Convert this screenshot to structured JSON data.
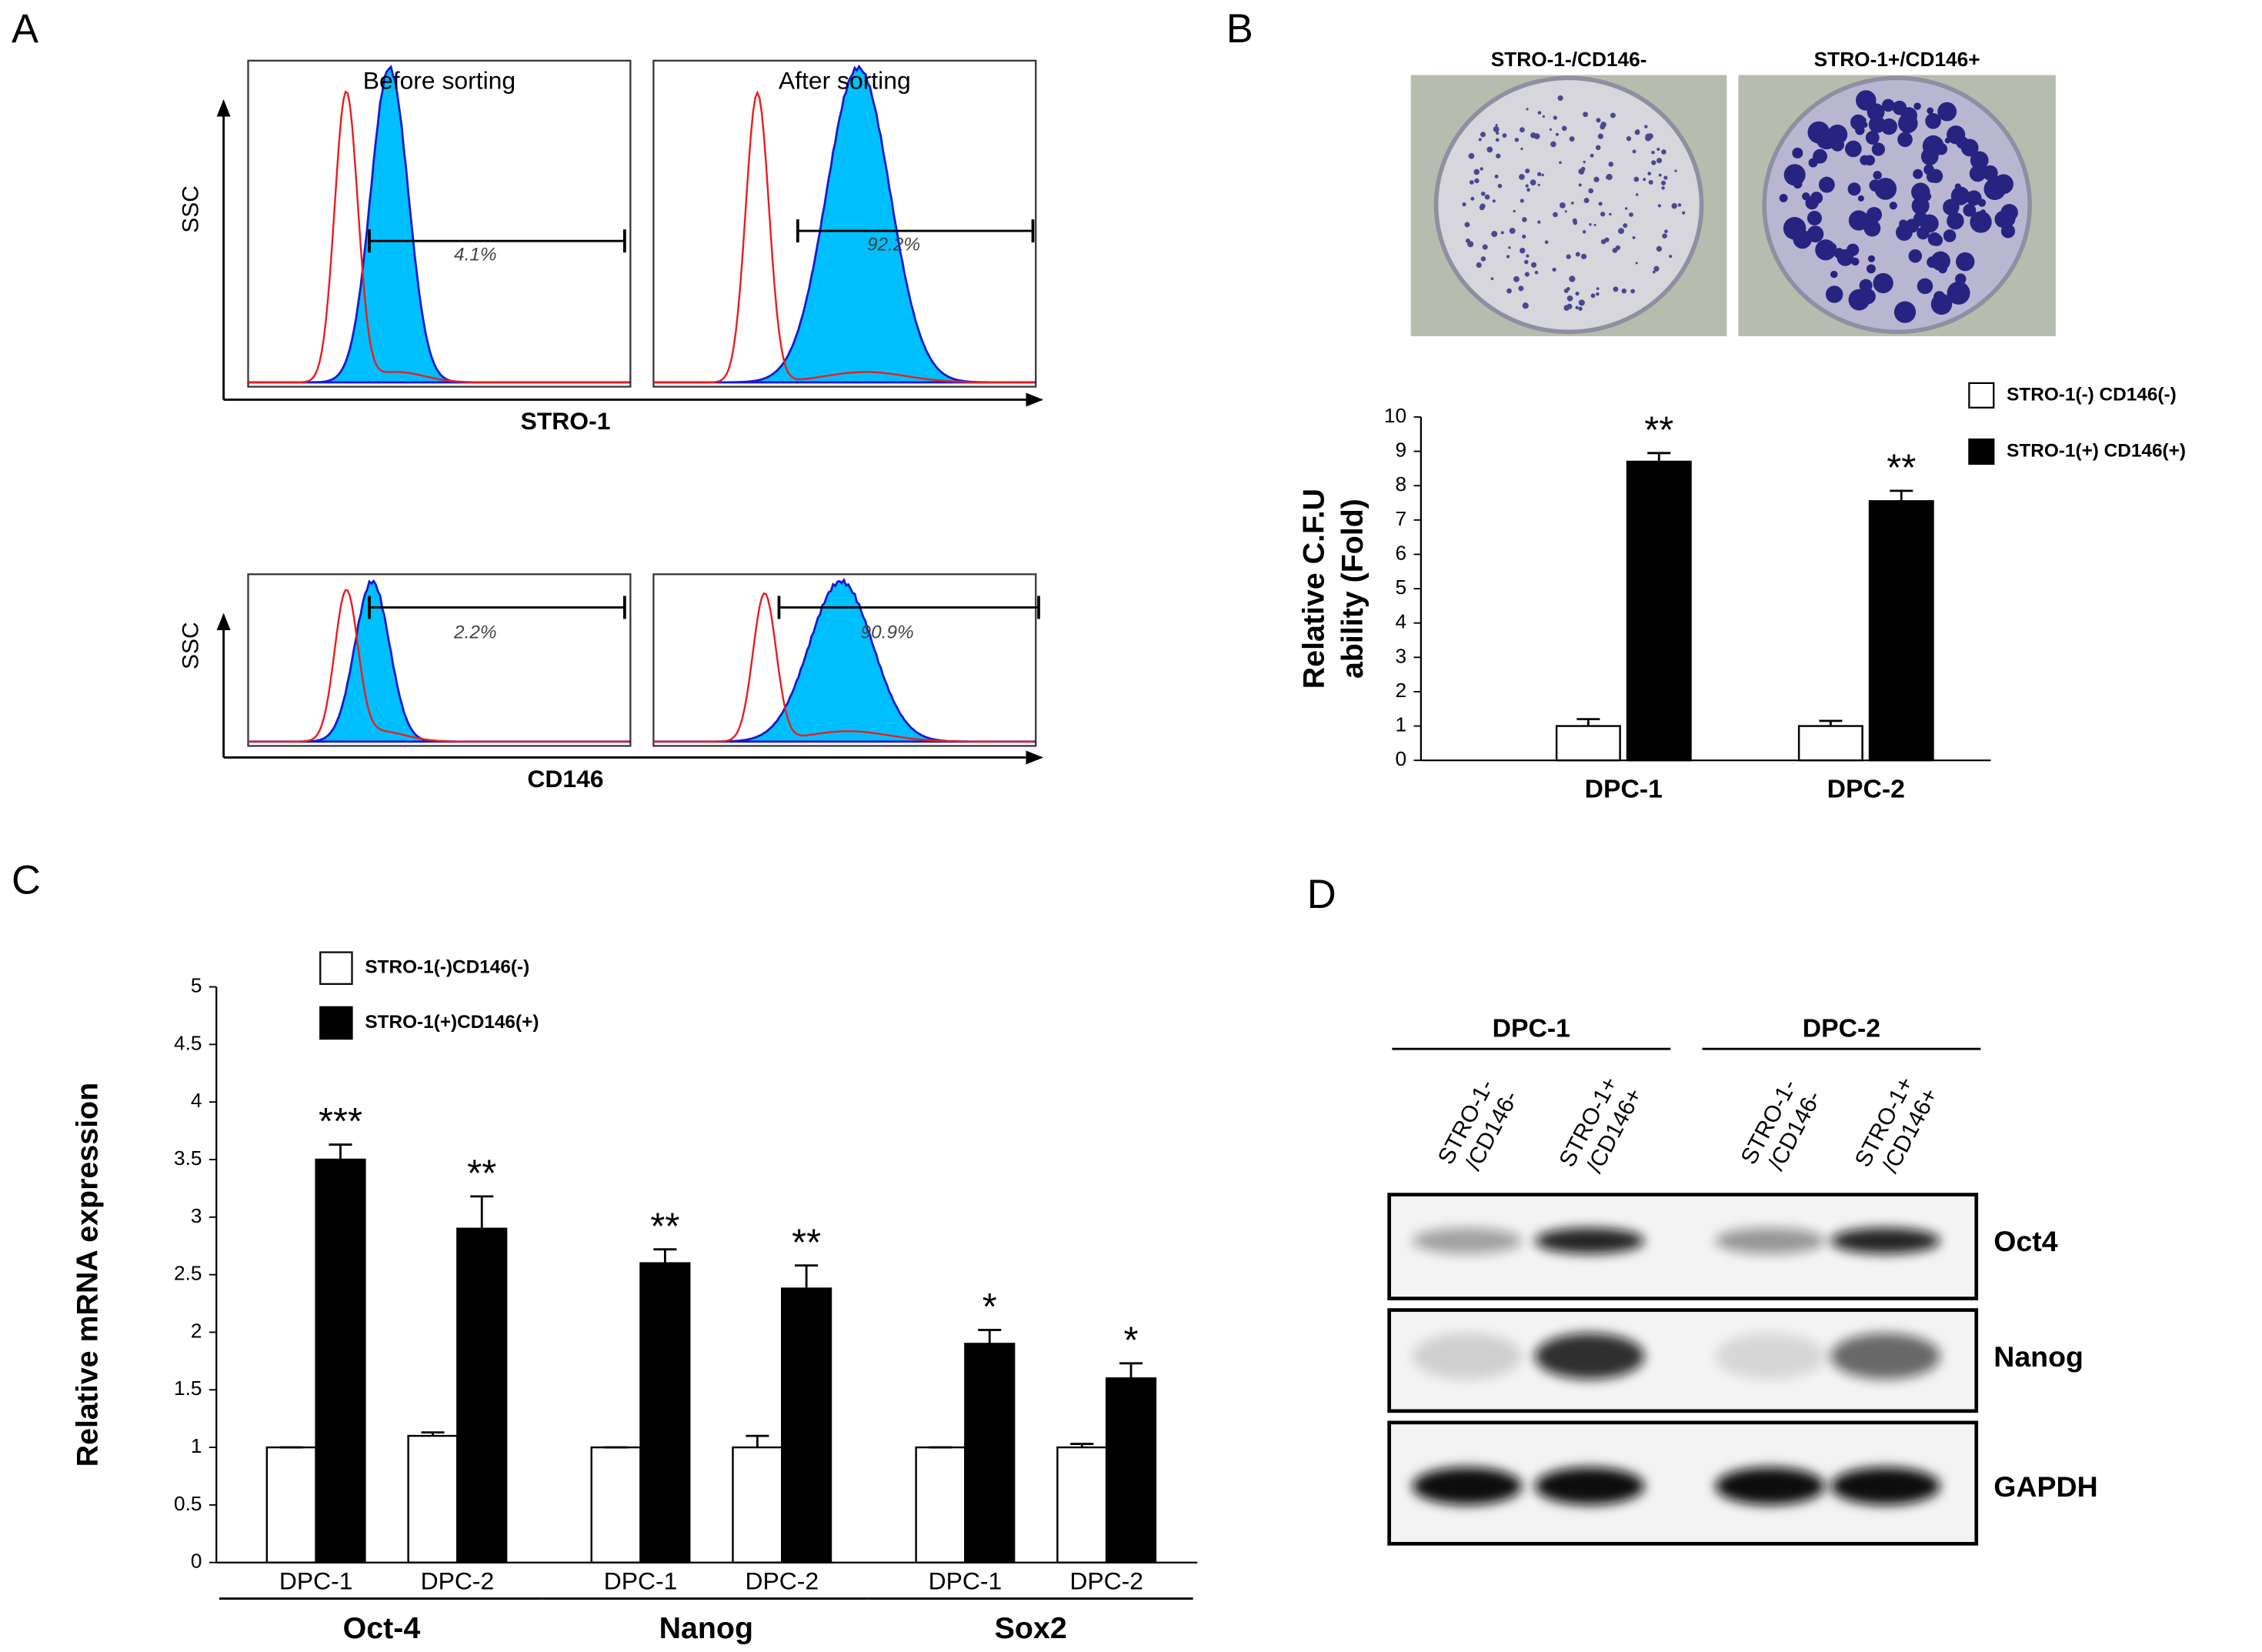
{
  "panel_labels": [
    "A",
    "B",
    "C",
    "D"
  ],
  "flow": {
    "columns": [
      "Before sorting",
      "After sorting"
    ],
    "y_label": "SSC",
    "markers": [
      "STRO-1",
      "CD146"
    ],
    "gates": [
      [
        "4.1%",
        "92.2%"
      ],
      [
        "2.2%",
        "90.9%"
      ]
    ]
  },
  "plates": [
    "STRO-1-/CD146-",
    "STRO-1+/CD146+"
  ],
  "chart_data": [
    {
      "type": "bar",
      "y_label": [
        "Relative C.F.U",
        "ability (Fold)"
      ],
      "categories": [
        "DPC-1",
        "DPC-2"
      ],
      "series": [
        {
          "name": "STRO-1(-) CD146(-)",
          "color": "#ffffff",
          "values": [
            1.0,
            1.0
          ],
          "errors": [
            0.2,
            0.15
          ]
        },
        {
          "name": "STRO-1(+) CD146(+)",
          "color": "#000000",
          "values": [
            8.7,
            7.55
          ],
          "errors": [
            0.25,
            0.3
          ],
          "annotations": [
            "**",
            "**"
          ]
        }
      ],
      "ylim": [
        0,
        10
      ],
      "yticks": [
        0,
        1,
        2,
        3,
        4,
        5,
        6,
        7,
        8,
        9,
        10
      ]
    },
    {
      "type": "bar",
      "y_label": "Relative mRNA expression",
      "groups": [
        "Oct-4",
        "Nanog",
        "Sox2"
      ],
      "categories": [
        "DPC-1",
        "DPC-2",
        "DPC-1",
        "DPC-2",
        "DPC-1",
        "DPC-2"
      ],
      "series": [
        {
          "name": "STRO-1(-)CD146(-)",
          "color": "#ffffff",
          "values": [
            1,
            1.1,
            1,
            1,
            1,
            1
          ],
          "errors": [
            0,
            0.03,
            0,
            0.1,
            0,
            0.03
          ]
        },
        {
          "name": "STRO-1(+)CD146(+)",
          "color": "#000000",
          "values": [
            3.5,
            2.9,
            2.6,
            2.38,
            1.9,
            1.6
          ],
          "errors": [
            0.13,
            0.28,
            0.12,
            0.2,
            0.12,
            0.13
          ],
          "annotations": [
            "***",
            "**",
            "**",
            "**",
            "*",
            "*"
          ]
        }
      ],
      "ylim": [
        0,
        5
      ],
      "yticks": [
        0,
        0.5,
        1,
        1.5,
        2,
        2.5,
        3,
        3.5,
        4,
        4.5,
        5
      ]
    }
  ],
  "blot": {
    "groups": [
      "DPC-1",
      "DPC-2"
    ],
    "lanes": [
      [
        "STRO-1-",
        "/CD146-"
      ],
      [
        "STRO-1+",
        "/CD146+"
      ],
      [
        "STRO-1-",
        "/CD146-"
      ],
      [
        "STRO-1+",
        "/CD146+"
      ]
    ],
    "proteins": [
      "Oct4",
      "Nanog",
      "GAPDH"
    ]
  }
}
